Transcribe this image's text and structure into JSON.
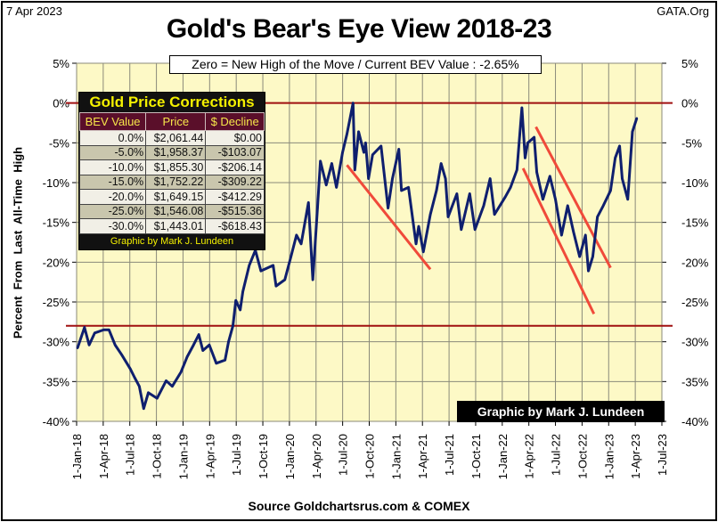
{
  "header": {
    "date": "7 Apr 2023",
    "site": "GATA.Org"
  },
  "chart_data": {
    "type": "line",
    "title": "Gold's Bear's Eye View 2018-23",
    "subtitle": "Zero = New High of the Move / Current  BEV Value : -2.65%",
    "ylabel": "Percent  From  Last  All-Time  High",
    "xlabel": "Source Goldchartsrus.com & COMEX",
    "ylim": [
      -40,
      5
    ],
    "yticks": [
      "5%",
      "0%",
      "-5%",
      "-10%",
      "-15%",
      "-20%",
      "-25%",
      "-30%",
      "-35%",
      "-40%"
    ],
    "xlim": [
      "2018-01-01",
      "2023-07-01"
    ],
    "xticks": [
      "1-Jan-18",
      "1-Apr-18",
      "1-Jul-18",
      "1-Oct-18",
      "1-Jan-19",
      "1-Apr-19",
      "1-Jul-19",
      "1-Oct-19",
      "1-Jan-20",
      "1-Apr-20",
      "1-Jul-20",
      "1-Oct-20",
      "1-Jan-21",
      "1-Apr-21",
      "1-Jul-21",
      "1-Oct-21",
      "1-Jan-22",
      "1-Apr-22",
      "1-Jul-22",
      "1-Oct-22",
      "1-Jan-23",
      "1-Apr-23",
      "1-Jul-23"
    ],
    "grid": true,
    "colors": {
      "series": "#0f1f6e",
      "reference_lines": "#a01010",
      "trend_lines": "#f04a3a",
      "plot_bg": "#fdf9c6"
    },
    "reference_lines": [
      0,
      -28
    ],
    "series": [
      {
        "x": [
          "2018-01-04",
          "2018-01-28",
          "2018-02-13",
          "2018-03-04",
          "2018-04-04",
          "2018-04-22",
          "2018-05-13",
          "2018-06-04",
          "2018-07-04",
          "2018-07-19",
          "2018-08-04",
          "2018-08-19",
          "2018-09-04",
          "2018-10-04",
          "2018-11-04",
          "2018-11-25",
          "2018-12-25",
          "2019-01-15",
          "2019-02-06",
          "2019-02-24",
          "2019-03-10",
          "2019-04-01",
          "2019-04-25",
          "2019-05-25",
          "2019-06-06",
          "2019-06-21",
          "2019-07-01",
          "2019-07-16",
          "2019-07-25",
          "2019-08-16",
          "2019-09-06",
          "2019-09-25",
          "2019-11-06",
          "2019-11-16",
          "2019-12-16",
          "2020-01-06",
          "2020-01-25",
          "2020-02-10",
          "2020-03-06",
          "2020-03-21",
          "2020-04-06",
          "2020-04-16",
          "2020-05-06",
          "2020-05-25",
          "2020-06-10",
          "2020-07-01",
          "2020-07-16",
          "2020-08-06",
          "2020-08-12",
          "2020-08-25",
          "2020-09-12",
          "2020-09-18",
          "2020-09-28",
          "2020-10-12",
          "2020-11-10",
          "2020-12-04",
          "2020-12-19",
          "2021-01-10",
          "2021-01-19",
          "2021-02-12",
          "2021-03-10",
          "2021-03-19",
          "2021-04-04",
          "2021-04-28",
          "2021-05-19",
          "2021-06-04",
          "2021-06-19",
          "2021-06-28",
          "2021-07-28",
          "2021-08-12",
          "2021-09-10",
          "2021-09-28",
          "2021-10-28",
          "2021-11-19",
          "2021-12-04",
          "2022-01-10",
          "2022-01-28",
          "2022-02-19",
          "2022-03-08",
          "2022-03-19",
          "2022-03-28",
          "2022-04-19",
          "2022-04-28",
          "2022-05-19",
          "2022-06-12",
          "2022-07-01",
          "2022-07-22",
          "2022-08-12",
          "2022-09-01",
          "2022-09-22",
          "2022-10-12",
          "2022-10-22",
          "2022-11-06",
          "2022-11-22",
          "2022-12-12",
          "2023-01-06",
          "2023-01-22",
          "2023-02-06",
          "2023-02-15",
          "2023-03-06",
          "2023-03-22",
          "2023-04-06"
        ],
        "y": [
          -30.8,
          -28.2,
          -30.4,
          -28.9,
          -28.5,
          -28.5,
          -30.4,
          -31.6,
          -33.4,
          -34.5,
          -35.6,
          -38.4,
          -36.4,
          -37.1,
          -34.9,
          -35.6,
          -33.8,
          -31.9,
          -30.4,
          -29.1,
          -31.1,
          -30.4,
          -32.7,
          -32.3,
          -30.0,
          -28.0,
          -24.8,
          -26.0,
          -23.7,
          -20.4,
          -18.5,
          -21.1,
          -20.4,
          -23.0,
          -22.2,
          -19.3,
          -16.6,
          -17.7,
          -12.5,
          -22.2,
          -13.2,
          -7.3,
          -10.3,
          -7.6,
          -10.6,
          -6.2,
          -3.9,
          0.0,
          -8.4,
          -3.6,
          -6.2,
          -5.0,
          -9.5,
          -6.5,
          -5.4,
          -13.2,
          -9.5,
          -5.8,
          -11.0,
          -10.6,
          -17.7,
          -15.5,
          -18.7,
          -14.0,
          -11.0,
          -7.6,
          -9.5,
          -14.3,
          -11.4,
          -15.9,
          -11.4,
          -15.9,
          -12.9,
          -9.5,
          -14.0,
          -11.8,
          -10.6,
          -8.4,
          -0.6,
          -6.9,
          -5.0,
          -4.3,
          -8.7,
          -12.1,
          -9.2,
          -12.1,
          -16.6,
          -12.9,
          -16.2,
          -19.3,
          -16.6,
          -21.1,
          -19.3,
          -14.3,
          -12.9,
          -11.0,
          -6.9,
          -5.4,
          -9.5,
          -12.1,
          -3.6,
          -1.9
        ]
      }
    ],
    "trend_lines": [
      {
        "x": [
          "2020-07-16",
          "2021-04-28"
        ],
        "y": [
          -7.8,
          -20.9
        ]
      },
      {
        "x": [
          "2022-03-12",
          "2022-11-10"
        ],
        "y": [
          -8.2,
          -26.5
        ]
      },
      {
        "x": [
          "2022-04-25",
          "2023-01-06"
        ],
        "y": [
          -3.0,
          -20.7
        ]
      }
    ],
    "credit_box": "Graphic by Mark J. Lundeen"
  },
  "corrections_table": {
    "title": "Gold Price Corrections",
    "headers": [
      "BEV Value",
      "Price",
      "$ Decline"
    ],
    "rows": [
      [
        "0.0%",
        "$2,061.44",
        "$0.00"
      ],
      [
        "-5.0%",
        "$1,958.37",
        "-$103.07"
      ],
      [
        "-10.0%",
        "$1,855.30",
        "-$206.14"
      ],
      [
        "-15.0%",
        "$1,752.22",
        "-$309.22"
      ],
      [
        "-20.0%",
        "$1,649.15",
        "-$412.29"
      ],
      [
        "-25.0%",
        "$1,546.08",
        "-$515.36"
      ],
      [
        "-30.0%",
        "$1,443.01",
        "-$618.43"
      ]
    ],
    "footer": "Graphic by Mark J. Lundeen"
  }
}
